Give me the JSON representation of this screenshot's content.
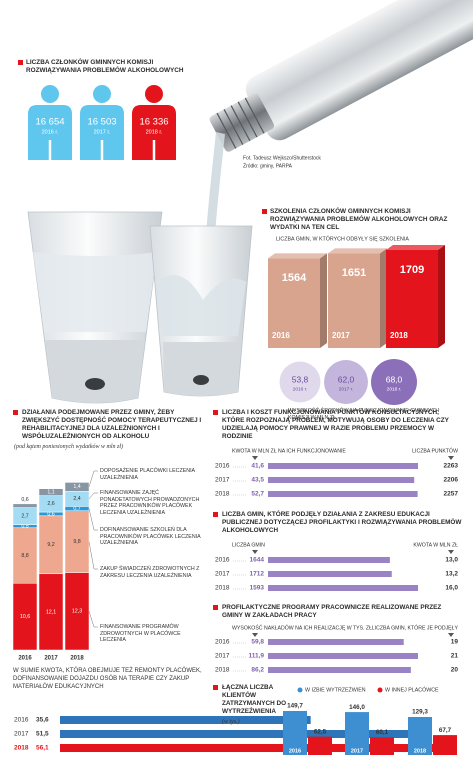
{
  "credits": {
    "photo": "Fot. Tadeusz Wejkszo/Shutterstock",
    "source": "Źródło: gminy, PARPA"
  },
  "chart_data": [
    {
      "type": "pictogram",
      "title": "LICZBA CZŁONKÓW GMINNYCH KOMISJI ROZWIĄZYWANIA PROBLEMÓW ALKOHOLOWYCH",
      "categories": [
        "2016 r.",
        "2017 r.",
        "2018 r."
      ],
      "values": [
        16654,
        16503,
        16336
      ],
      "value_labels": [
        "16 654",
        "16 503",
        "16 336"
      ],
      "colors": [
        "#5fc6ee",
        "#5fc6ee",
        "#e3141b"
      ]
    },
    {
      "type": "bar",
      "title": "SZKOLENIA CZŁONKÓW GMINNYCH KOMISJI ROZWIĄZYWANIA PROBLEMÓW ALKOHOLOWYCH ORAZ WYDATKI NA TEN CEL",
      "subtitle": "LICZBA GMIN, W KTÓRYCH ODBYŁY SIĘ SZKOLENIA",
      "categories": [
        "2016",
        "2017",
        "2018"
      ],
      "values": [
        1564,
        1651,
        1709
      ],
      "colors": [
        "#d9a48e",
        "#d9a48e",
        "#e3141b"
      ]
    },
    {
      "type": "bubble",
      "title": "WYSOKOŚĆ ŚRODKÓW NA FUNKCJONOWANIE GMINNYCH KOMISJI W MLN ZŁ",
      "categories": [
        "2016 r.",
        "2017 r.",
        "2018 r."
      ],
      "values": [
        53.8,
        62.0,
        68.0
      ],
      "value_labels": [
        "53,8",
        "62,0",
        "68,0"
      ],
      "colors": [
        "#e0d9ec",
        "#c3b5dc",
        "#8b6fb9"
      ]
    },
    {
      "type": "bar",
      "stacked": true,
      "title": "DZIAŁANIA PODEJMOWANE PRZEZ GMINY, ŻEBY ZWIĘKSZYĆ DOSTĘPNOŚĆ POMOCY TERAPEUTYCZNEJ I REHABILITACYJNEJ DLA UZALEŻNIONYCH I WSPÓŁUZALEŻNIONYCH OD ALKOHOLU",
      "subtitle": "(pod kątem poniesionych wydatków w mln zł)",
      "categories": [
        "2016",
        "2017",
        "2018"
      ],
      "series": [
        {
          "name": "FINANSOWANIE PROGRAMÓW ZDROWOTNYCH W PLACÓWCE LECZENIA",
          "color": "#e3141b",
          "values": [
            10.6,
            12.1,
            12.3
          ],
          "value_labels": [
            "10,6",
            "12,1",
            "12,3"
          ]
        },
        {
          "name": "ZAKUP ŚWIADCZEŃ ZDROWOTNYCH Z ZAKRESU LECZENIA UZALEŻNIENIA",
          "color": "#eea88f",
          "values": [
            8.8,
            9.2,
            9.8
          ],
          "value_labels": [
            "8,8",
            "9,2",
            "9,8"
          ]
        },
        {
          "name": "DOFINANSOWANIE SZKOLEŃ DLA PRACOWNIKÓW PLACÓWEK LECZENIA UZALEŻNIENIA",
          "color": "#2a9ad6",
          "values": [
            0.5,
            0.6,
            0.7
          ],
          "value_labels": [
            "0,5",
            "0,6",
            "0,7"
          ]
        },
        {
          "name": "FINANSOWANIE ZAJĘĆ PONADETATOWYCH PROWADZONYCH PRZEZ PRACOWNIKÓW PLACÓWEK LECZENIA UZALEŻNIENIA",
          "color": "#a4dcf4",
          "values": [
            2.7,
            2.6,
            2.4
          ],
          "value_labels": [
            "2,7",
            "2,6",
            "2,4"
          ]
        },
        {
          "name": "DOPOSAŻENIE PLACÓWKI LECZENIA UZALEŻNIENIA",
          "color": "#8796a2",
          "values": [
            0.6,
            1.1,
            1.4
          ],
          "value_labels": [
            "0,6",
            "1,1",
            "1,4"
          ]
        }
      ]
    },
    {
      "type": "bar",
      "horizontal": true,
      "title": "W SUMIE KWOTA, KTÓRA OBEJMUJE TEŻ REMONTY PLACÓWEK, DOFINANSOWANIE DOJAZDU OSÓB NA TERAPIE CZY ZAKUP MATERIAŁÓW EDUKACYJNYCH",
      "categories": [
        "2016",
        "2017",
        "2018"
      ],
      "values": [
        35.6,
        51.5,
        56.1
      ],
      "value_labels": [
        "35,6",
        "51,5",
        "56,1"
      ],
      "colors": [
        "#2e74b8",
        "#2e74b8",
        "#e3141b"
      ]
    },
    {
      "type": "bar",
      "horizontal": true,
      "title": "LICZBA I KOSZT FUNKCJONOWANIA PUNKTÓW KONSULTACYJNYCH, KTÓRE ROZPOZNAJĄ PROBLEM, MOTYWUJĄ OSOBY DO LECZENIA CZY UDZIELAJĄ POMOCY PRAWNEJ W RAZIE PROBLEMU PRZEMOCY W RODZINIE",
      "categories": [
        "2016",
        "2017",
        "2018"
      ],
      "series": [
        {
          "name": "KWOTA W MLN ZŁ NA ICH FUNKCJONOWANIE",
          "color": "#7d5fae",
          "values": [
            41.6,
            43.5,
            52.7
          ],
          "value_labels": [
            "41,6",
            "43,5",
            "52,7"
          ]
        },
        {
          "name": "LICZBA PUNKTÓW",
          "color": "#9a83c4",
          "values": [
            2263,
            2206,
            2257
          ]
        }
      ]
    },
    {
      "type": "bar",
      "horizontal": true,
      "title": "LICZBA GMIN, KTÓRE PODJĘŁY DZIAŁANIA Z ZAKRESU EDUKACJI PUBLICZNEJ DOTYCZĄCEJ PROFILAKTYKI I ROZWIĄZYWANIA PROBLEMÓW ALKOHOLOWYCH",
      "categories": [
        "2016",
        "2017",
        "2018"
      ],
      "series": [
        {
          "name": "LICZBA GMIN",
          "color": "#7d5fae",
          "values": [
            1644,
            1712,
            1593
          ]
        },
        {
          "name": "KWOTA W MLN ZŁ",
          "color": "#9a83c4",
          "values": [
            13.0,
            13.2,
            16.0
          ],
          "value_labels": [
            "13,0",
            "13,2",
            "16,0"
          ]
        }
      ]
    },
    {
      "type": "bar",
      "horizontal": true,
      "title": "PROFILAKTYCZNE PROGRAMY PRACOWNICZE REALIZOWANE PRZEZ GMINY W ZAKŁADACH PRACY",
      "categories": [
        "2016",
        "2017",
        "2018"
      ],
      "series": [
        {
          "name": "WYSOKOŚĆ NAKŁADÓW NA ICH REALIZACJĘ W TYS. ZŁ",
          "color": "#7d5fae",
          "values": [
            59.8,
            111.9,
            86.2
          ],
          "value_labels": [
            "59,8",
            "111,9",
            "86,2"
          ]
        },
        {
          "name": "LICZBA GMIN, KTÓRE JE PODJĘŁY",
          "color": "#9a83c4",
          "values": [
            19,
            21,
            20
          ]
        }
      ]
    },
    {
      "type": "bar",
      "title": "ŁĄCZNA LICZBA KLIENTÓW ZATRZYMANYCH DO WYTRZEŹWIENIA",
      "subtitle": "(w tys.)",
      "categories": [
        "2016",
        "2017",
        "2018"
      ],
      "series": [
        {
          "name": "W IZBIE WYTRZEŹWIEŃ",
          "color": "#3d8fd1",
          "values": [
            149.7,
            146.0,
            129.3
          ],
          "value_labels": [
            "149,7",
            "146,0",
            "129,3"
          ]
        },
        {
          "name": "W INNEJ PLACÓWCE",
          "color": "#e3141b",
          "values": [
            62.5,
            60.1,
            67.7
          ],
          "value_labels": [
            "62,5",
            "60,1",
            "67,7"
          ]
        }
      ]
    }
  ]
}
